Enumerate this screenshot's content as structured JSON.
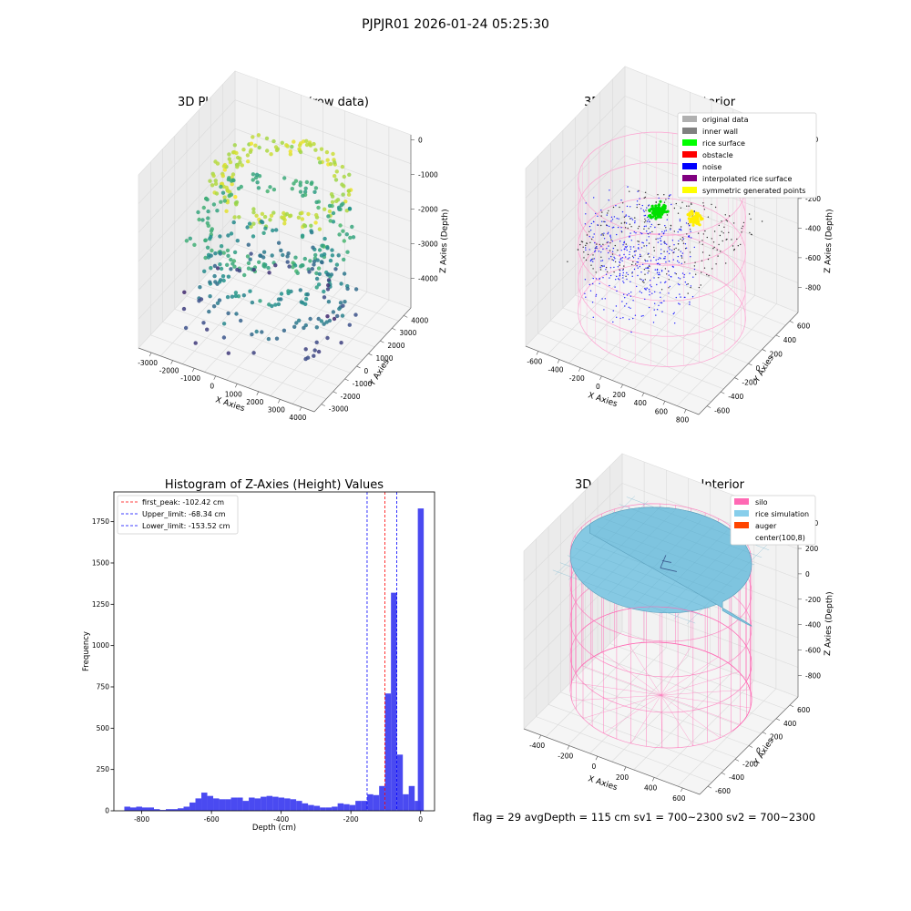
{
  "figure": {
    "suptitle": "PJPJR01 2026-01-24 05:25:30",
    "footer": "flag = 29  avgDepth = 115 cm  sv1 = 700~2300  sv2 = 700~2300"
  },
  "chart_data": [
    {
      "type": "scatter",
      "subtype": "3d-scatter",
      "title": "3D Plot of Silo Interior(row data)",
      "xlabel": "X Axies",
      "ylabel": "Y Axies",
      "zlabel": "Z Axies (Depth)",
      "xticks": [
        -3000,
        -2000,
        -1000,
        0,
        1000,
        2000,
        3000,
        4000
      ],
      "yticks": [
        -3000,
        -2000,
        -1000,
        0,
        1000,
        2000,
        3000,
        4000
      ],
      "zticks": [
        0,
        -1000,
        -2000,
        -3000,
        -4000
      ],
      "colormap": "viridis"
    },
    {
      "type": "scatter",
      "subtype": "3d-scatter",
      "title": "3D classify of Silo Interior",
      "xlabel": "X Axies",
      "ylabel": "Y Axies",
      "zlabel": "Z Axies (Depth)",
      "xticks": [
        -600,
        -400,
        -200,
        0,
        200,
        400,
        600,
        800
      ],
      "yticks": [
        -600,
        -400,
        -200,
        0,
        200,
        400,
        600
      ],
      "zticks": [
        200,
        0,
        -200,
        -400,
        -600,
        -800
      ],
      "legend": [
        {
          "label": "original data",
          "color": "#b0b0b0"
        },
        {
          "label": "inner wall",
          "color": "#808080"
        },
        {
          "label": "rice surface",
          "color": "#00ff00"
        },
        {
          "label": "obstacle",
          "color": "#ff0000"
        },
        {
          "label": "noise",
          "color": "#0000ff"
        },
        {
          "label": "interpolated rice surface",
          "color": "#800080"
        },
        {
          "label": "symmetric generated points",
          "color": "#ffff00"
        }
      ],
      "legend_position": "top-right"
    },
    {
      "type": "bar",
      "subtype": "histogram",
      "title": "Histogram of Z-Axies (Height) Values",
      "xlabel": "Depth (cm)",
      "ylabel": "Frequency",
      "xlim": [
        -880,
        40
      ],
      "ylim": [
        0,
        1930
      ],
      "xticks": [
        -800,
        -600,
        -400,
        -200,
        0
      ],
      "yticks": [
        0,
        250,
        500,
        750,
        1000,
        1250,
        1500,
        1750
      ],
      "bar_color": "#4040f0",
      "bin_width": 17,
      "bins_start": [
        -850,
        -833,
        -816,
        -799,
        -782,
        -765,
        -748,
        -731,
        -714,
        -697,
        -680,
        -663,
        -646,
        -629,
        -612,
        -595,
        -578,
        -561,
        -544,
        -527,
        -510,
        -493,
        -476,
        -459,
        -442,
        -425,
        -408,
        -391,
        -374,
        -357,
        -340,
        -323,
        -306,
        -289,
        -272,
        -255,
        -238,
        -221,
        -204,
        -187,
        -170,
        -153,
        -136,
        -119,
        -102,
        -85,
        -68,
        -51,
        -34,
        -17
      ],
      "values": [
        25,
        20,
        25,
        20,
        20,
        10,
        5,
        10,
        10,
        15,
        25,
        50,
        75,
        110,
        90,
        75,
        70,
        70,
        80,
        80,
        60,
        80,
        75,
        85,
        90,
        85,
        80,
        75,
        70,
        60,
        45,
        35,
        30,
        20,
        20,
        25,
        45,
        40,
        35,
        60,
        60,
        100,
        95,
        150,
        710,
        1320,
        340,
        100,
        150,
        60
      ],
      "extra_bar": {
        "x": -8,
        "width": 17,
        "value": 1830
      },
      "reference_lines": [
        {
          "label": "first_peak: -102.42 cm",
          "x": -102.42,
          "color": "#ff0000"
        },
        {
          "label": "Upper_limit: -68.34 cm",
          "x": -68.34,
          "color": "#0000ff"
        },
        {
          "label": "Lower_limit: -153.52 cm",
          "x": -153.52,
          "color": "#0000ff"
        }
      ],
      "legend_position": "top-left"
    },
    {
      "type": "area",
      "subtype": "3d-surface",
      "title": "3D simulation of Silo Interior",
      "xlabel": "X Axies",
      "ylabel": "Y Axies",
      "zlabel": "Z Axies (Depth)",
      "xticks": [
        -400,
        -200,
        0,
        200,
        400,
        600
      ],
      "yticks": [
        -600,
        -400,
        -200,
        0,
        200,
        400,
        600
      ],
      "zticks": [
        400,
        200,
        0,
        -200,
        -400,
        -600,
        -800
      ],
      "legend": [
        {
          "label": "silo",
          "color": "#ff69b4"
        },
        {
          "label": "rice simulation",
          "color": "#87ceeb"
        },
        {
          "label": "auger",
          "color": "#ff4500"
        },
        {
          "label": "center(100,8)",
          "color": ""
        }
      ],
      "legend_position": "top-right"
    }
  ]
}
